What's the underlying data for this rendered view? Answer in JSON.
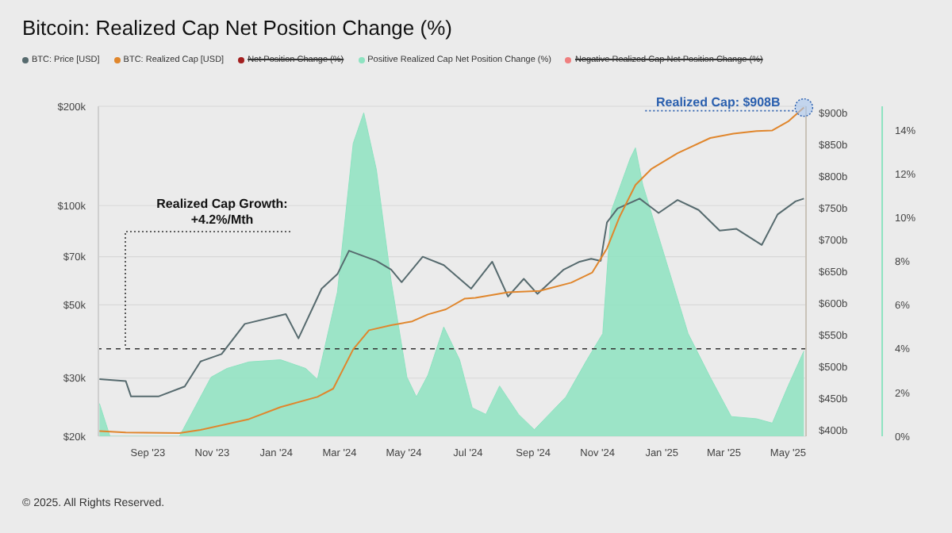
{
  "chart_data": {
    "type": "line",
    "title": "Bitcoin: Realized Cap Net Position Change (%)",
    "legend": "top left",
    "grid": "y",
    "log": "y",
    "marker": "none",
    "xlim": [
      "2023-07-16",
      "2025-05-18"
    ],
    "xticks": [
      {
        "value": "2023-09-01",
        "label": "Sep '23"
      },
      {
        "value": "2023-11-01",
        "label": "Nov '23"
      },
      {
        "value": "2024-01-01",
        "label": "Jan '24"
      },
      {
        "value": "2024-03-01",
        "label": "Mar '24"
      },
      {
        "value": "2024-05-01",
        "label": "May '24"
      },
      {
        "value": "2024-07-01",
        "label": "Jul '24"
      },
      {
        "value": "2024-09-01",
        "label": "Sep '24"
      },
      {
        "value": "2024-11-01",
        "label": "Nov '24"
      },
      {
        "value": "2025-01-01",
        "label": "Jan '25"
      },
      {
        "value": "2025-03-01",
        "label": "Mar '25"
      },
      {
        "value": "2025-05-01",
        "label": "May '25"
      }
    ],
    "ylim": [
      20,
      200
    ],
    "yticks": [
      {
        "value": 20,
        "label": "$20k"
      },
      {
        "value": 30,
        "label": "$30k"
      },
      {
        "value": 50,
        "label": "$50k"
      },
      {
        "value": 70,
        "label": "$70k"
      },
      {
        "value": 100,
        "label": "$100k"
      },
      {
        "value": 200,
        "label": "$200k"
      }
    ],
    "y2lim": [
      390,
      910
    ],
    "y2ticks": [
      {
        "value": 400,
        "label": "$400b"
      },
      {
        "value": 450,
        "label": "$450b"
      },
      {
        "value": 500,
        "label": "$500b"
      },
      {
        "value": 550,
        "label": "$550b"
      },
      {
        "value": 600,
        "label": "$600b"
      },
      {
        "value": 650,
        "label": "$650b"
      },
      {
        "value": 700,
        "label": "$700b"
      },
      {
        "value": 750,
        "label": "$750b"
      },
      {
        "value": 800,
        "label": "$800b"
      },
      {
        "value": 850,
        "label": "$850b"
      },
      {
        "value": 900,
        "label": "$900b"
      }
    ],
    "y3lim": [
      0,
      15.1
    ],
    "y3ticks": [
      {
        "value": 0,
        "label": "0%"
      },
      {
        "value": 2,
        "label": "2%"
      },
      {
        "value": 4,
        "label": "4%"
      },
      {
        "value": 6,
        "label": "6%"
      },
      {
        "value": 8,
        "label": "8%"
      },
      {
        "value": 10,
        "label": "10%"
      },
      {
        "value": 12,
        "label": "12%"
      },
      {
        "value": 14,
        "label": "14%"
      }
    ],
    "series": [
      {
        "name": "BTC: Price [USD]",
        "axis": "y",
        "color": "#566a6e",
        "x": [
          "2023-07-17",
          "2023-08-11",
          "2023-08-16",
          "2023-09-11",
          "2023-10-06",
          "2023-10-21",
          "2023-11-10",
          "2023-12-02",
          "2024-01-10",
          "2024-01-22",
          "2024-02-13",
          "2024-02-28",
          "2024-03-10",
          "2024-04-05",
          "2024-04-19",
          "2024-04-29",
          "2024-05-19",
          "2024-06-08",
          "2024-07-04",
          "2024-07-24",
          "2024-08-08",
          "2024-08-23",
          "2024-09-05",
          "2024-09-30",
          "2024-10-15",
          "2024-10-26",
          "2024-11-04",
          "2024-11-10",
          "2024-11-20",
          "2024-12-11",
          "2024-12-29",
          "2025-01-16",
          "2025-02-05",
          "2025-02-25",
          "2025-03-13",
          "2025-04-06",
          "2025-04-21",
          "2025-05-08",
          "2025-05-16"
        ],
        "values": [
          29.8,
          29.4,
          26.4,
          26.4,
          28.3,
          33.7,
          35.5,
          43.8,
          46.9,
          39.6,
          56,
          62,
          73,
          68,
          64,
          58.6,
          70,
          66,
          56,
          67.6,
          53,
          60,
          54,
          64,
          67.6,
          69,
          68,
          89,
          98,
          105,
          95,
          104,
          97,
          84,
          85,
          76,
          94,
          103,
          105
        ]
      },
      {
        "name": "BTC: Realized Cap [USD]",
        "axis": "y2",
        "color": "#e0862c",
        "x": [
          "2023-07-17",
          "2023-08-11",
          "2023-10-01",
          "2023-10-21",
          "2023-12-06",
          "2024-01-05",
          "2024-02-09",
          "2024-02-24",
          "2024-03-14",
          "2024-03-29",
          "2024-04-19",
          "2024-05-09",
          "2024-05-24",
          "2024-06-10",
          "2024-06-28",
          "2024-07-08",
          "2024-08-08",
          "2024-09-07",
          "2024-10-07",
          "2024-10-27",
          "2024-11-10",
          "2024-11-22",
          "2024-12-07",
          "2024-12-22",
          "2025-01-16",
          "2025-02-16",
          "2025-03-10",
          "2025-04-01",
          "2025-04-16",
          "2025-05-01",
          "2025-05-16"
        ],
        "values": [
          398,
          396,
          395,
          400,
          417,
          436,
          452,
          465,
          527,
          557,
          565,
          571,
          582,
          590,
          607,
          608,
          617,
          619,
          632,
          648,
          686,
          736,
          786,
          811,
          836,
          860,
          867,
          871,
          872,
          886,
          908
        ]
      },
      {
        "name": "Net Position Change (%)",
        "color": "#a31f1f"
      },
      {
        "name": "Positive Realized Cap Net Position Change (%)",
        "type": "area",
        "axis": "y3",
        "color": "#8ee3c1",
        "x": [
          "2023-07-17",
          "2023-07-27",
          "2023-10-01",
          "2023-10-31",
          "2023-11-15",
          "2023-12-06",
          "2024-01-05",
          "2024-01-29",
          "2024-02-09",
          "2024-02-28",
          "2024-03-14",
          "2024-03-24",
          "2024-04-05",
          "2024-04-19",
          "2024-05-04",
          "2024-05-13",
          "2024-05-24",
          "2024-06-08",
          "2024-06-23",
          "2024-07-05",
          "2024-07-18",
          "2024-07-31",
          "2024-08-18",
          "2024-09-02",
          "2024-10-02",
          "2024-10-22",
          "2024-11-06",
          "2024-11-14",
          "2024-12-02",
          "2024-12-07",
          "2024-12-14",
          "2025-01-09",
          "2025-01-26",
          "2025-02-16",
          "2025-03-08",
          "2025-04-01",
          "2025-04-16",
          "2025-05-01",
          "2025-05-16"
        ],
        "values": [
          1.5,
          0,
          0,
          2.7,
          3.1,
          3.4,
          3.5,
          3.1,
          2.6,
          6.6,
          13.4,
          14.8,
          12.2,
          7.1,
          2.7,
          1.8,
          2.8,
          5.0,
          3.5,
          1.3,
          1.0,
          2.3,
          1.0,
          0.3,
          1.8,
          3.5,
          4.7,
          10.3,
          12.7,
          13.2,
          11.5,
          7.4,
          4.7,
          2.7,
          0.9,
          0.8,
          0.6,
          2.3,
          3.9
        ]
      },
      {
        "name": "Negative Realized Cap Net Position Change (%)",
        "color": "#ef7f7f"
      }
    ],
    "ref_lines": [
      {
        "axis": "y3",
        "value": 4,
        "line_style": "dashed",
        "color": "#333333"
      }
    ],
    "annotations": [
      "Realized Cap Growth: +4.2%/Mth",
      "Realized Cap: $908B",
      "© 2025. All Rights Reserved."
    ]
  }
}
